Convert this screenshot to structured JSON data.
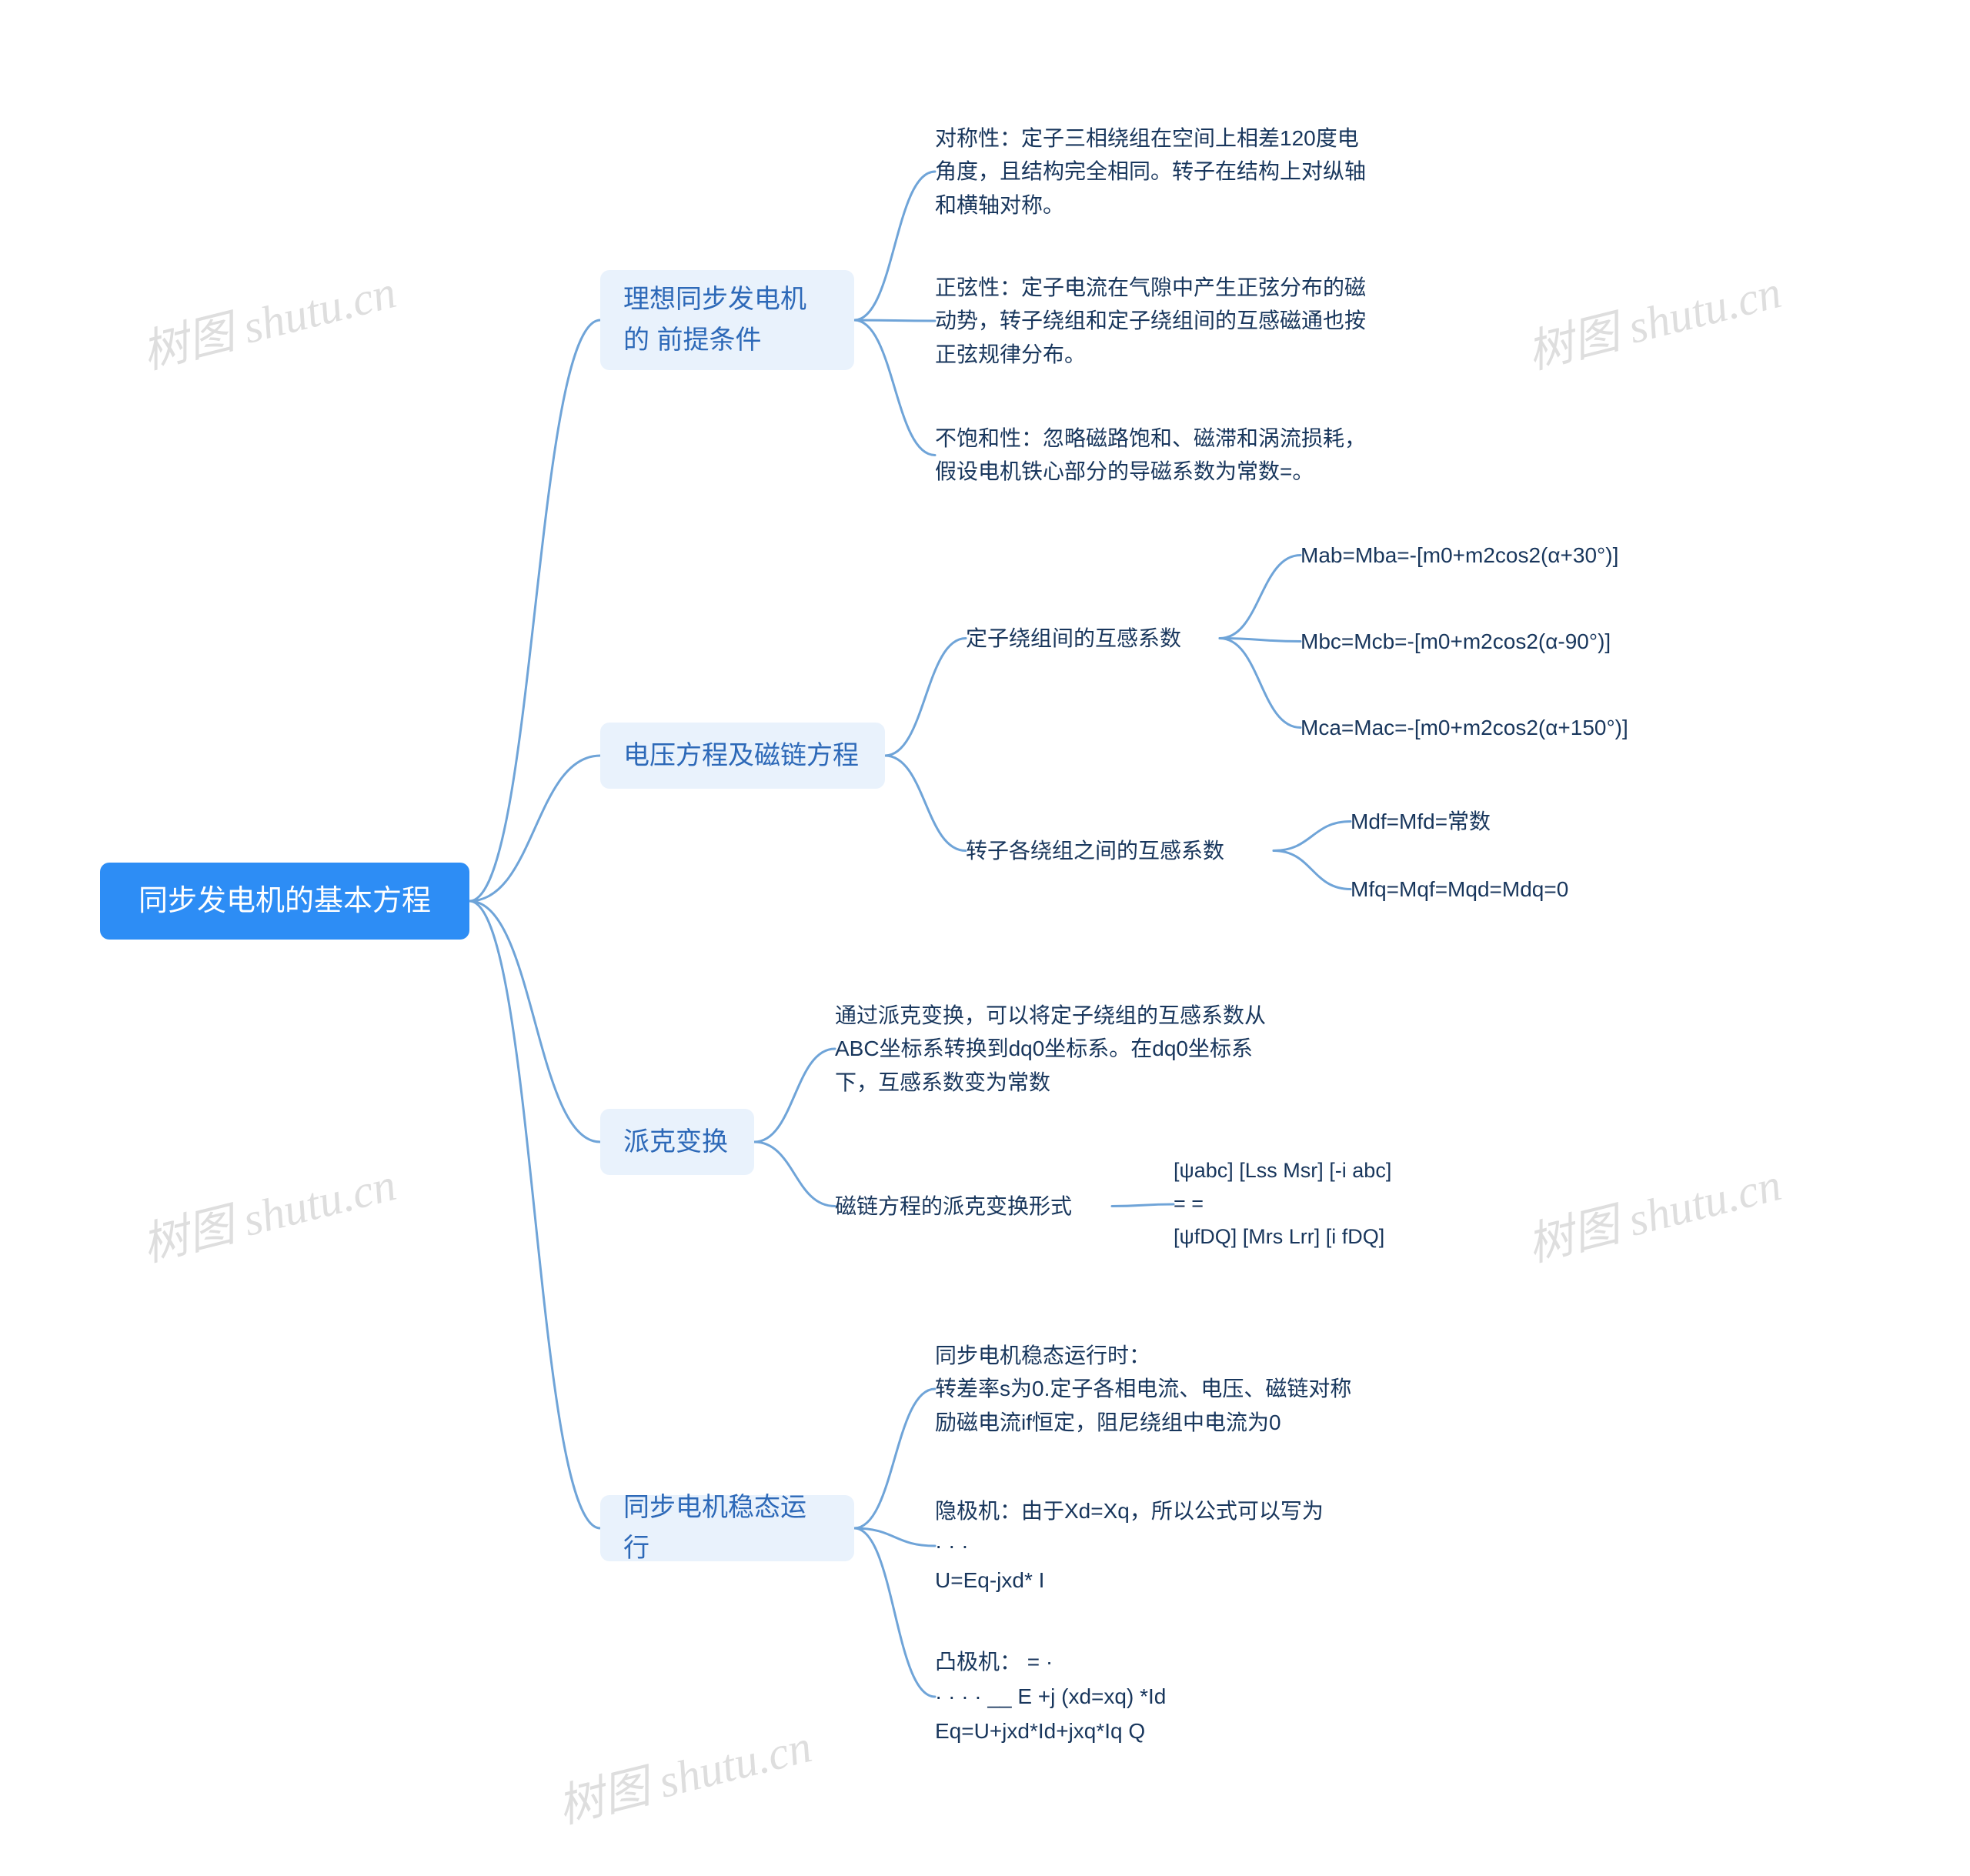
{
  "diagram": {
    "type": "tree",
    "stroke_color": "#6fa4d8",
    "stroke_width": 3,
    "background": "#ffffff",
    "root_bg": "#2d8df5",
    "root_fg": "#ffffff",
    "level2_bg": "#e9f2fc",
    "level2_fg": "#2d69b8",
    "leaf_fg": "#18365c",
    "font_root": 38,
    "font_l2": 34,
    "font_leaf": 28,
    "watermark_text": "树图 shutu.cn",
    "watermark_color": "#d9d9d9"
  },
  "root": {
    "label": "同步发电机的基本方程"
  },
  "b1": {
    "label": "理想同步发电机的\n前提条件",
    "c1": "对称性：定子三相绕组在空间上相差120度电\n角度，且结构完全相同。转子在结构上对纵轴\n和横轴对称。",
    "c2": "正弦性：定子电流在气隙中产生正弦分布的磁\n动势，转子绕组和定子绕组间的互感磁通也按\n正弦规律分布。",
    "c3": "不饱和性：忽略磁路饱和、磁滞和涡流损耗，\n假设电机铁心部分的导磁系数为常数=。"
  },
  "b2": {
    "label": "电压方程及磁链方程",
    "c1": {
      "label": "定子绕组间的互感系数",
      "d1": "Mab=Mba=-[m0+m2cos2(α+30°)]",
      "d2": "Mbc=Mcb=-[m0+m2cos2(α-90°)]",
      "d3": "Mca=Mac=-[m0+m2cos2(α+150°)]"
    },
    "c2": {
      "label": "转子各绕组之间的互感系数",
      "d1": "Mdf=Mfd=常数",
      "d2": "Mfq=Mqf=Mqd=Mdq=0"
    }
  },
  "b3": {
    "label": "派克变换",
    "c1": "通过派克变换，可以将定子绕组的互感系数从\nABC坐标系转换到dq0坐标系。在dq0坐标系\n下，互感系数变为常数",
    "c2": {
      "label": "磁链方程的派克变换形式",
      "matrix": "[ψabc]    [Lss   Msr]     [-i abc]\n             =                    =\n[ψfDQ]   [Mrs   Lrr]     [i fDQ]"
    }
  },
  "b4": {
    "label": "同步电机稳态运行",
    "c1": "同步电机稳态运行时：\n转差率s为0.定子各相电流、电压、磁链对称\n励磁电流if恒定，阻尼绕组中电流为0",
    "c2": "隐极机：由于Xd=Xq，所以公式可以写为\n·     ·        ·\nU=Eq-jxd* I",
    "c3": "凸极机：                           =  ·\n ·     ·      ·         ·      __   E    +j  (xd=xq)  *Id\nEq=U+jxd*Id+jxq*Iq            Q"
  }
}
